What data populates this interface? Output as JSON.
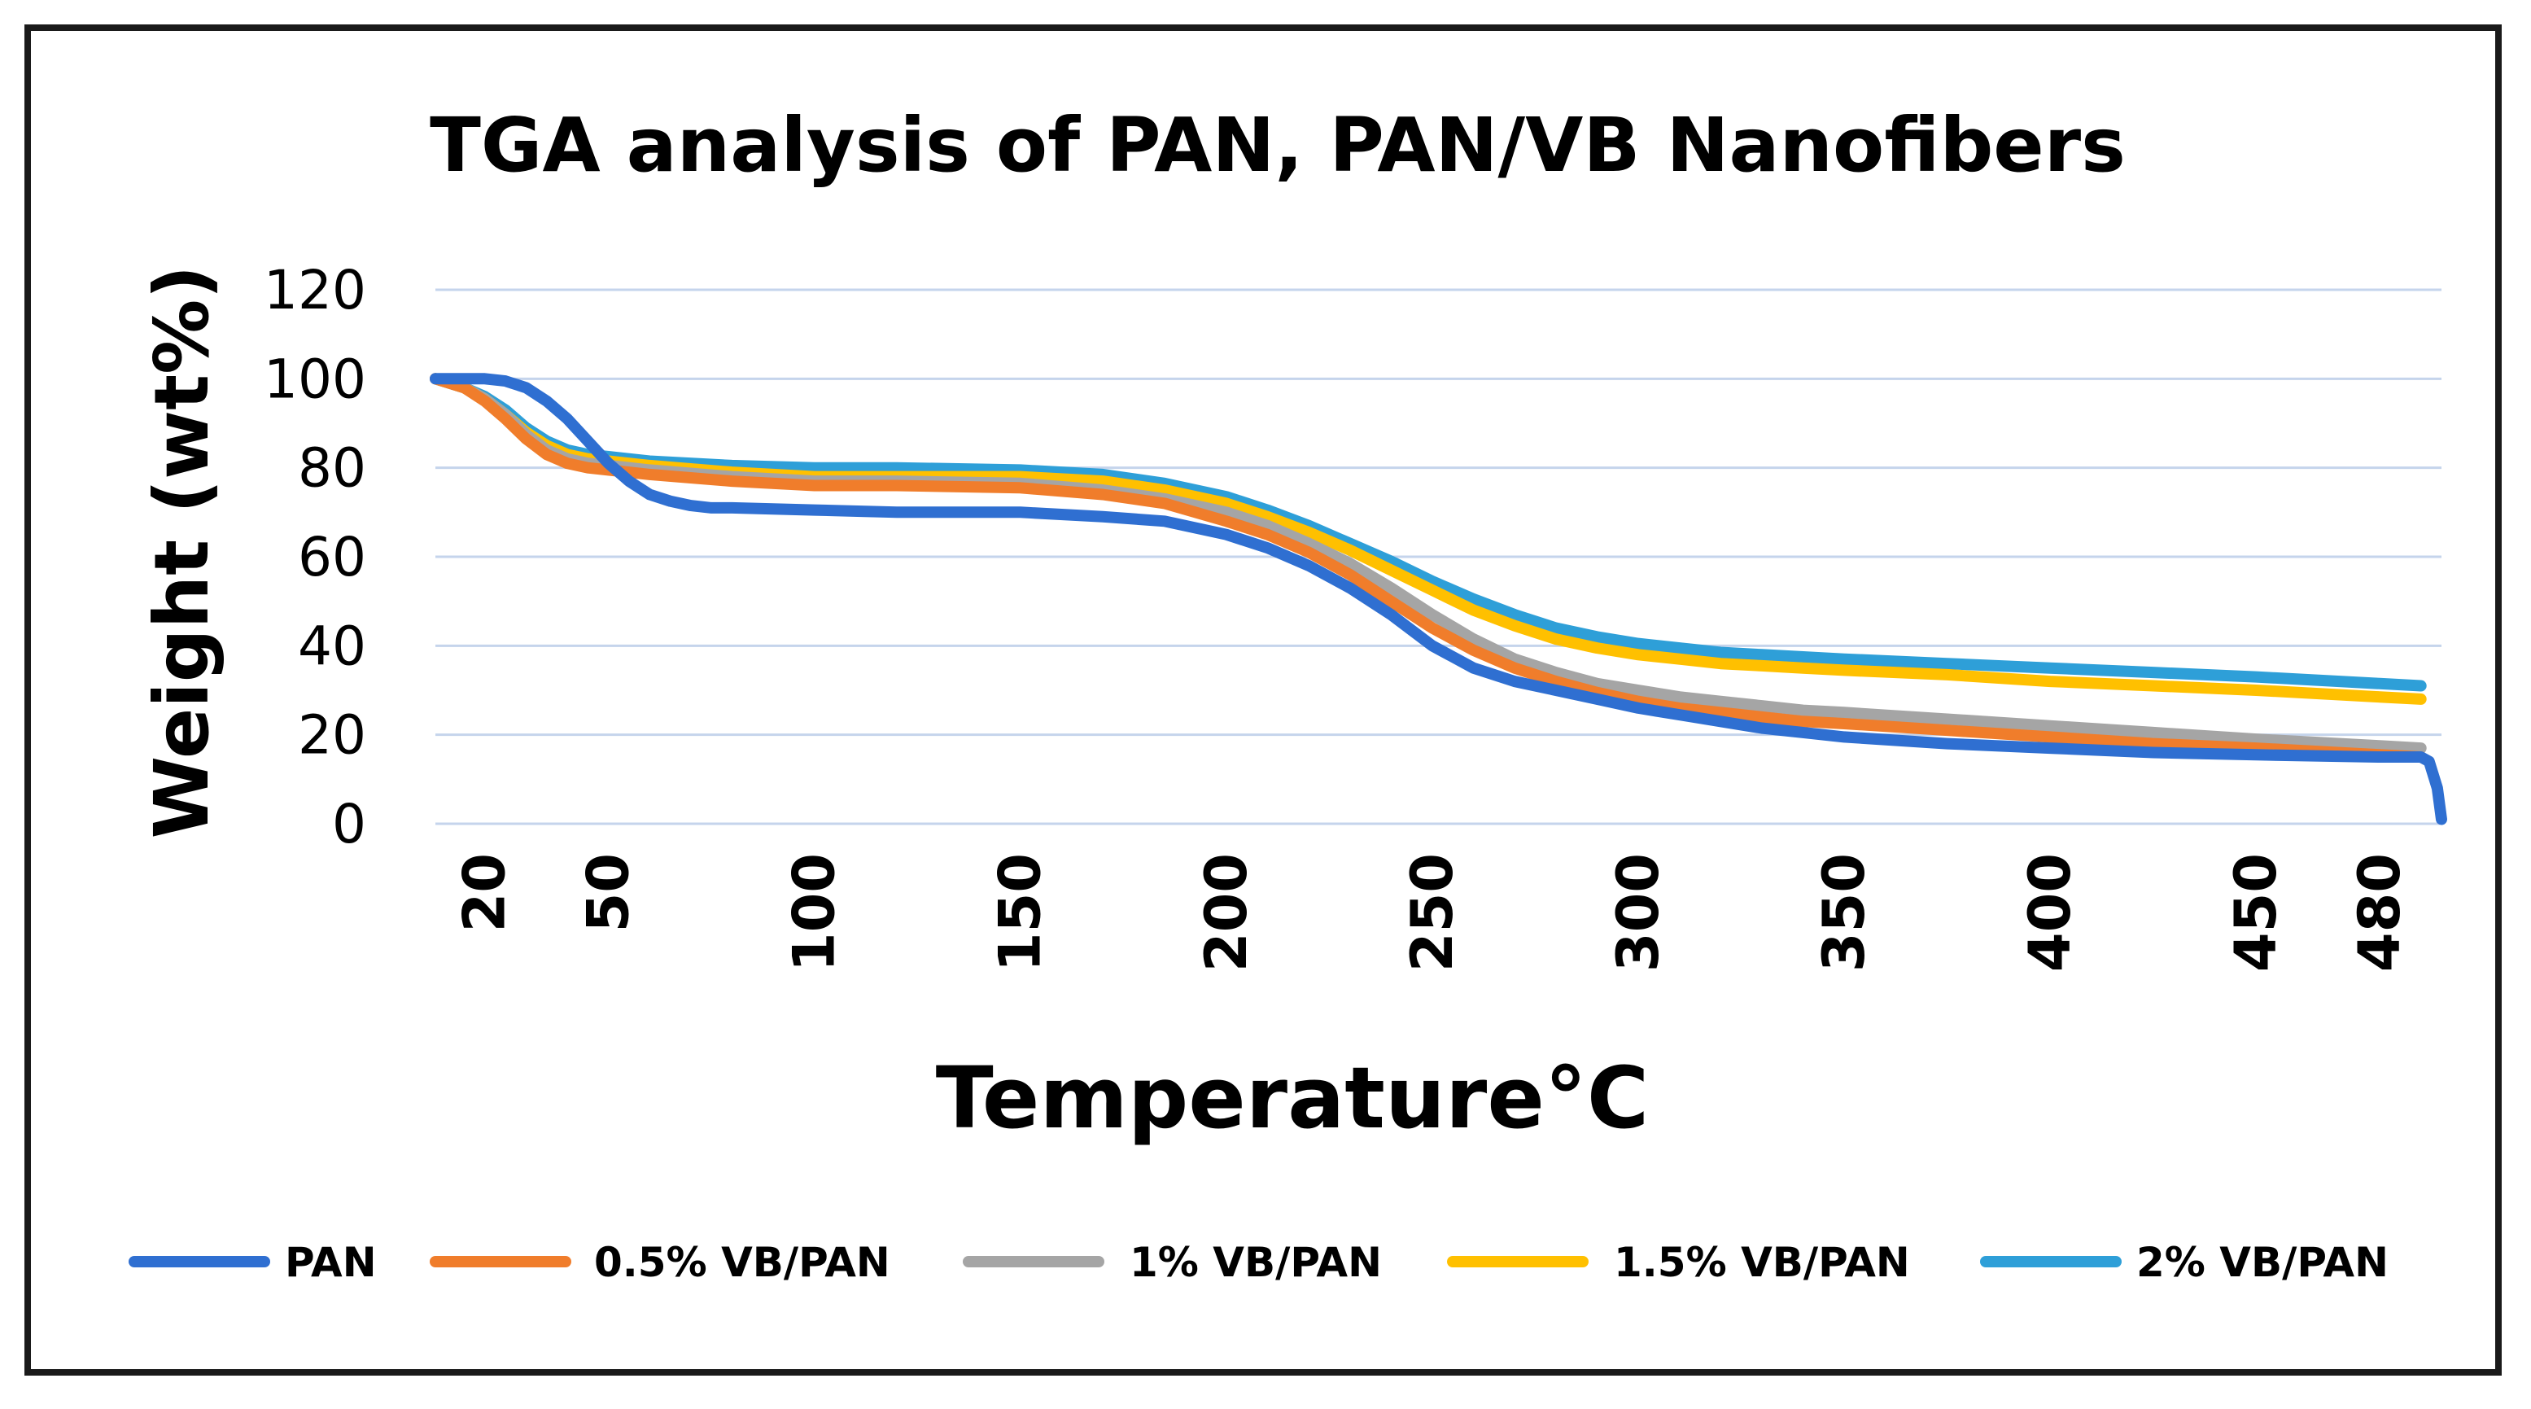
{
  "chart_data": {
    "type": "line",
    "title": "TGA analysis of PAN, PAN/VB Nanofibers",
    "xlabel": "Temperature°C",
    "ylabel": "Weight (wt%)",
    "ylim": [
      0,
      120
    ],
    "yticks": [
      "0",
      "20",
      "40",
      "60",
      "80",
      "100",
      "120"
    ],
    "xlim": [
      8,
      495
    ],
    "xticks": [
      "20",
      "50",
      "100",
      "150",
      "200",
      "250",
      "300",
      "350",
      "400",
      "450",
      "480"
    ],
    "grid": true,
    "legend_position": "bottom",
    "series": [
      {
        "name": "PAN",
        "color": "#2F6FD1",
        "x": [
          8,
          20,
          25,
          30,
          35,
          40,
          45,
          50,
          55,
          60,
          65,
          70,
          75,
          80,
          100,
          120,
          150,
          170,
          185,
          200,
          210,
          220,
          230,
          240,
          250,
          260,
          270,
          280,
          290,
          300,
          310,
          320,
          330,
          340,
          350,
          375,
          400,
          425,
          450,
          480,
          490,
          492,
          494,
          495
        ],
        "values": [
          100,
          100,
          99.5,
          98,
          95,
          91,
          86,
          81,
          77,
          74,
          72.5,
          71.5,
          71,
          71,
          70.5,
          70,
          70,
          69,
          68,
          65,
          62,
          58,
          53,
          47,
          40,
          35,
          32,
          30,
          28,
          26,
          24.5,
          23,
          21.5,
          20.5,
          19.5,
          18,
          17,
          16,
          15.5,
          15,
          15,
          14,
          8,
          1
        ]
      },
      {
        "name": "0.5% VB/PAN",
        "color": "#F07D2B",
        "x": [
          8,
          15,
          20,
          25,
          30,
          35,
          40,
          45,
          50,
          60,
          80,
          100,
          120,
          150,
          170,
          185,
          200,
          210,
          220,
          230,
          240,
          250,
          260,
          270,
          280,
          290,
          300,
          310,
          320,
          330,
          340,
          350,
          375,
          400,
          425,
          450,
          480,
          490
        ],
        "values": [
          100,
          98,
          95,
          91,
          86.5,
          83,
          81,
          80,
          79.5,
          78.5,
          77,
          76,
          76,
          75.5,
          74,
          72,
          68,
          65,
          61,
          56,
          50,
          44,
          39,
          35,
          32,
          29.5,
          27.5,
          26,
          25,
          24,
          23,
          22.5,
          21,
          19.5,
          18,
          17,
          15.5,
          15
        ]
      },
      {
        "name": "1% VB/PAN",
        "color": "#A5A5A5",
        "x": [
          8,
          15,
          20,
          25,
          30,
          35,
          40,
          45,
          50,
          60,
          80,
          100,
          120,
          150,
          170,
          185,
          200,
          210,
          220,
          230,
          240,
          250,
          260,
          270,
          280,
          290,
          300,
          310,
          320,
          330,
          340,
          350,
          375,
          400,
          425,
          450,
          480,
          490
        ],
        "values": [
          100,
          98,
          95.5,
          92,
          87.5,
          84,
          82,
          81,
          80.5,
          79.5,
          78,
          77,
          77,
          76.5,
          75,
          73,
          70,
          67,
          63,
          58.5,
          53,
          47,
          41.5,
          37,
          34,
          31.5,
          30,
          28.5,
          27.5,
          26.5,
          25.5,
          25,
          23.5,
          22,
          20.5,
          19,
          17.5,
          17
        ]
      },
      {
        "name": "1.5% VB/PAN",
        "color": "#FFC000",
        "x": [
          8,
          15,
          20,
          25,
          30,
          35,
          40,
          45,
          50,
          60,
          80,
          100,
          120,
          150,
          170,
          185,
          200,
          210,
          220,
          230,
          240,
          250,
          260,
          270,
          280,
          290,
          300,
          310,
          320,
          330,
          340,
          350,
          375,
          400,
          425,
          450,
          480,
          490
        ],
        "values": [
          100,
          98,
          95.5,
          92,
          88,
          85,
          83,
          82,
          81.5,
          80.5,
          79,
          78,
          78,
          78,
          77,
          75,
          72,
          69,
          65.5,
          61.5,
          57,
          52.5,
          48,
          44.5,
          41.5,
          39.5,
          38,
          37,
          36,
          35.5,
          35,
          34.5,
          33.5,
          32,
          31,
          30,
          28.5,
          28
        ]
      },
      {
        "name": "2% VB/PAN",
        "color": "#2E9FD8",
        "x": [
          8,
          15,
          20,
          25,
          30,
          35,
          40,
          45,
          50,
          60,
          80,
          100,
          120,
          150,
          170,
          185,
          200,
          210,
          220,
          230,
          240,
          250,
          260,
          270,
          280,
          290,
          300,
          310,
          320,
          330,
          340,
          350,
          375,
          400,
          425,
          450,
          480,
          490
        ],
        "values": [
          100,
          98,
          96,
          93,
          89,
          86,
          84,
          83,
          82.5,
          81.5,
          80.5,
          80,
          80,
          79.5,
          78.5,
          76.5,
          73.5,
          70.5,
          67,
          63,
          59,
          54.5,
          50.5,
          47,
          44,
          42,
          40.5,
          39.5,
          38.5,
          38,
          37.5,
          37,
          36,
          35,
          34,
          33,
          31.5,
          31
        ]
      }
    ]
  }
}
